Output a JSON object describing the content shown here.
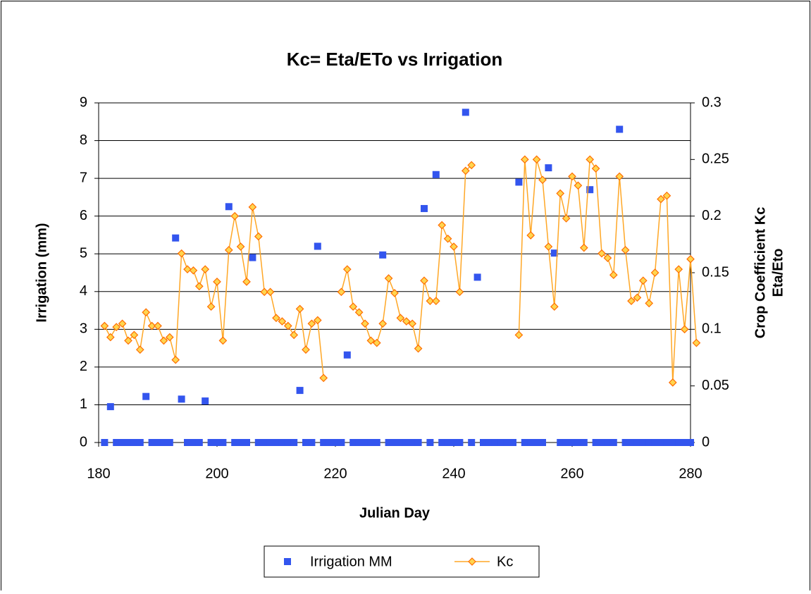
{
  "chart_data": {
    "type": "scatter-line",
    "title": "Kc= Eta/ETo vs Irrigation",
    "xlabel": "Julian Day",
    "ylabel": "Irrigation (mm)",
    "y2label": [
      "Crop Coefficient Kc",
      "Eta/Eto"
    ],
    "x": [
      181,
      182,
      183,
      184,
      185,
      186,
      187,
      188,
      189,
      190,
      191,
      192,
      193,
      194,
      195,
      196,
      197,
      198,
      199,
      200,
      201,
      202,
      203,
      204,
      205,
      206,
      207,
      208,
      209,
      210,
      211,
      212,
      213,
      214,
      215,
      216,
      217,
      218,
      219,
      220,
      221,
      222,
      223,
      224,
      225,
      226,
      227,
      228,
      229,
      230,
      231,
      232,
      233,
      234,
      235,
      236,
      237,
      238,
      239,
      240,
      241,
      242,
      243,
      244,
      245,
      246,
      247,
      248,
      249,
      250,
      251,
      252,
      253,
      254,
      255,
      256,
      257,
      258,
      259,
      260,
      261,
      262,
      263,
      264,
      265,
      266,
      267,
      268,
      269,
      270,
      271,
      272,
      273,
      274,
      275,
      276,
      277,
      278,
      279,
      280,
      281
    ],
    "series": [
      {
        "name": "Irrigation MM",
        "color": "#3355ee",
        "marker": "square",
        "axis": "y",
        "values": [
          0,
          0.95,
          0,
          0,
          0,
          0,
          0,
          1.22,
          0,
          0,
          0,
          0,
          5.42,
          1.15,
          0,
          0,
          0,
          1.1,
          0,
          0,
          0,
          6.25,
          0,
          0,
          0,
          4.9,
          0,
          0,
          0,
          0,
          0,
          0,
          0,
          1.38,
          0,
          0,
          5.2,
          0,
          0,
          0,
          0,
          2.32,
          0,
          0,
          0,
          0,
          0,
          4.97,
          0,
          0,
          0,
          0,
          0,
          0,
          6.2,
          0,
          7.1,
          0,
          0,
          0,
          0,
          8.75,
          0,
          4.38,
          0,
          0,
          0,
          0,
          0,
          0,
          6.9,
          0,
          0,
          0,
          0,
          7.28,
          5.02,
          0,
          0,
          0,
          0,
          0,
          6.7,
          0,
          0,
          0,
          0,
          8.3,
          0,
          0,
          0,
          0,
          0,
          0,
          0,
          0,
          0,
          0,
          0,
          0,
          null
        ]
      },
      {
        "name": "Kc",
        "color": "#ffa726",
        "marker": "diamond",
        "axis": "y2",
        "values": [
          0.103,
          0.093,
          0.102,
          0.105,
          0.09,
          0.095,
          0.082,
          0.115,
          0.103,
          0.103,
          0.09,
          0.093,
          0.073,
          0.167,
          0.153,
          0.152,
          0.138,
          0.153,
          0.12,
          0.142,
          0.09,
          0.17,
          0.2,
          0.173,
          0.142,
          0.208,
          0.182,
          0.133,
          0.133,
          0.11,
          0.107,
          0.103,
          0.095,
          0.118,
          0.082,
          0.105,
          0.108,
          0.057,
          null,
          null,
          0.133,
          0.153,
          0.12,
          0.115,
          0.105,
          0.09,
          0.088,
          0.105,
          0.145,
          0.132,
          0.11,
          0.107,
          0.105,
          0.083,
          0.143,
          0.125,
          0.125,
          0.192,
          0.18,
          0.173,
          0.133,
          0.24,
          0.245,
          null,
          null,
          null,
          null,
          null,
          null,
          null,
          0.095,
          0.25,
          0.183,
          0.25,
          0.232,
          0.173,
          0.12,
          0.22,
          0.198,
          0.235,
          0.227,
          0.172,
          0.25,
          0.242,
          0.167,
          0.163,
          0.148,
          0.235,
          0.17,
          0.125,
          0.128,
          0.143,
          0.123,
          0.15,
          0.215,
          0.218,
          0.053,
          0.153,
          0.1,
          0.162,
          0.088
        ]
      }
    ],
    "xlim": [
      180,
      280
    ],
    "xticks": [
      180,
      200,
      220,
      240,
      260,
      280
    ],
    "ylim": [
      0,
      9
    ],
    "yticks": [
      0,
      1,
      2,
      3,
      4,
      5,
      6,
      7,
      8,
      9
    ],
    "y2lim": [
      0,
      0.3
    ],
    "y2ticks": [
      0,
      0.05,
      0.1,
      0.15,
      0.2,
      0.25,
      0.3
    ],
    "grid": true,
    "legend": "bottom"
  }
}
